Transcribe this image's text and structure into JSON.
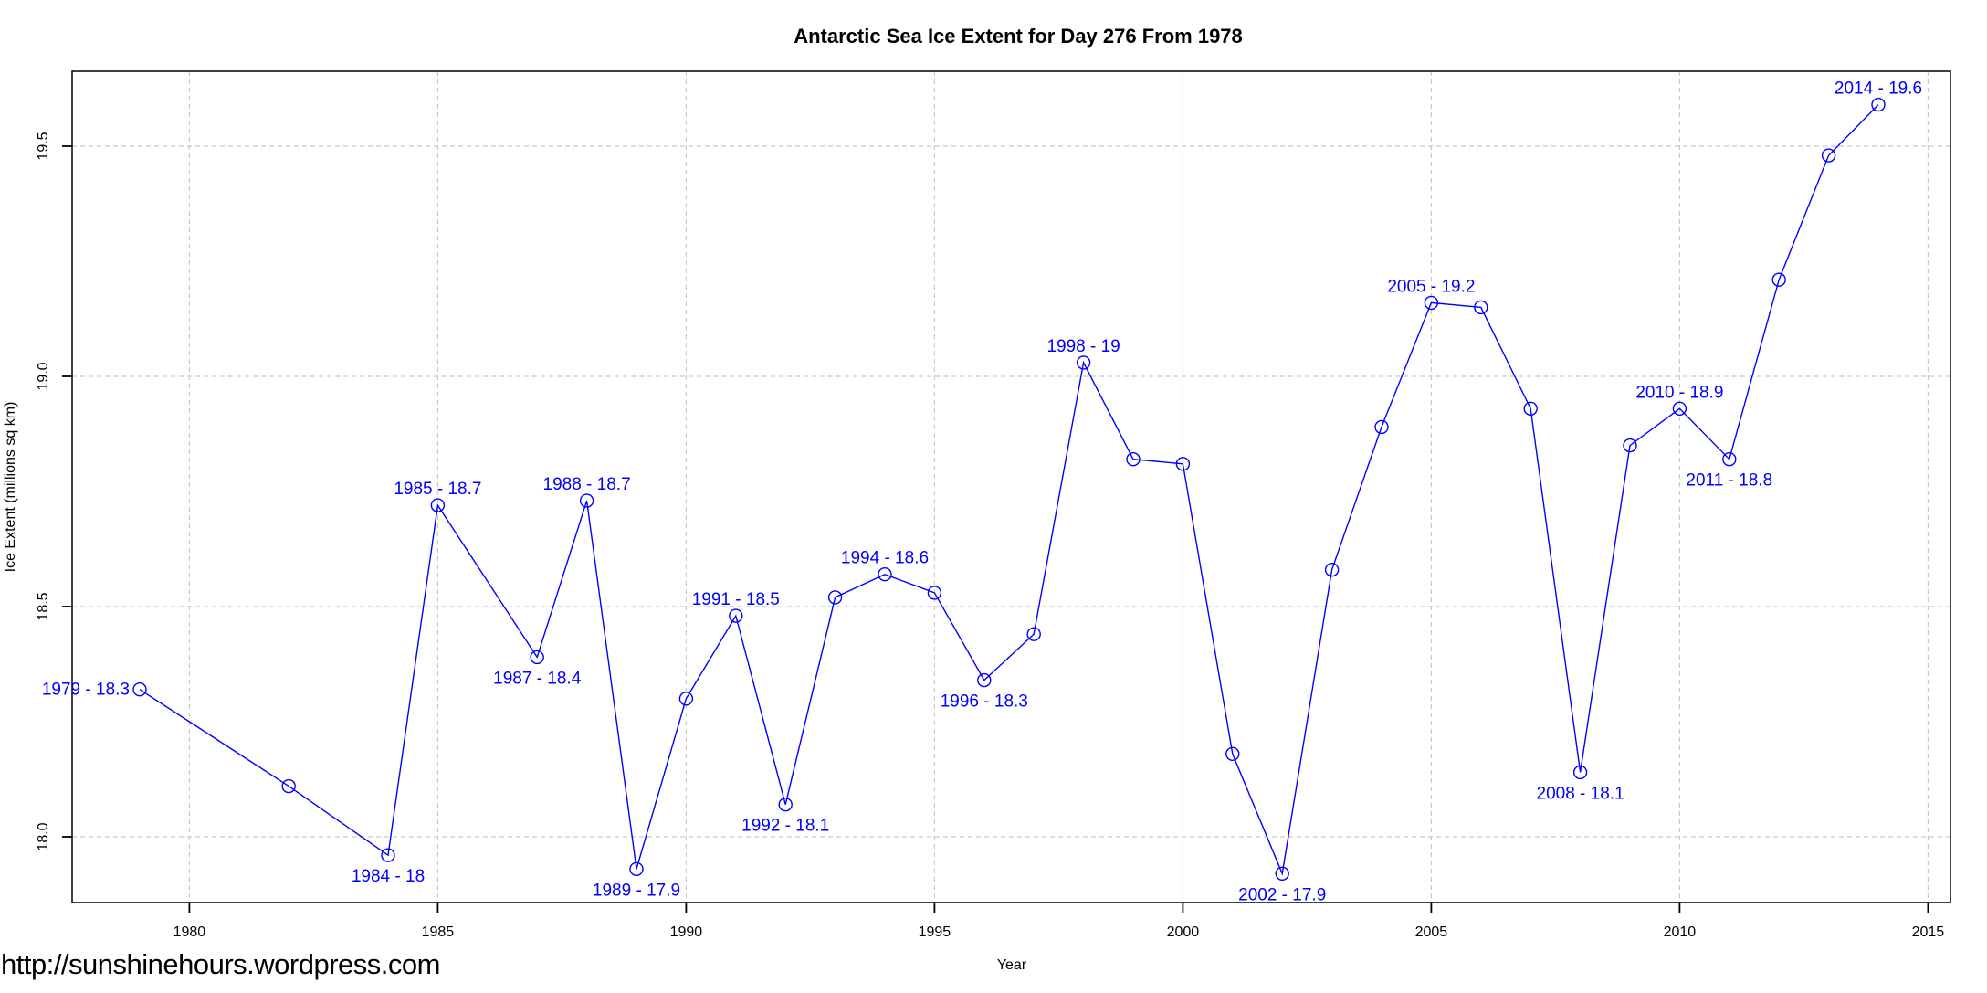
{
  "chart_data": {
    "type": "line",
    "title": "Antarctic Sea Ice Extent for Day 276 From 1978",
    "xlabel": "Year",
    "ylabel": "Ice Extent (millions sq km)",
    "x_ticks": [
      1980,
      1985,
      1990,
      1995,
      2000,
      2005,
      2010,
      2015
    ],
    "y_ticks": [
      "18.0",
      "18.5",
      "19.0",
      "19.5"
    ],
    "xlim": [
      1977.6,
      2015.5
    ],
    "ylim": [
      17.86,
      19.66
    ],
    "grid": "dashed",
    "legend": "none",
    "series": [
      {
        "name": "ice-extent",
        "color": "#0000FF",
        "marker": "open-circle",
        "points": [
          {
            "year": 1979,
            "value": 18.32
          },
          {
            "year": 1982,
            "value": 18.11
          },
          {
            "year": 1984,
            "value": 17.96
          },
          {
            "year": 1985,
            "value": 18.72
          },
          {
            "year": 1987,
            "value": 18.39
          },
          {
            "year": 1988,
            "value": 18.73
          },
          {
            "year": 1989,
            "value": 17.93
          },
          {
            "year": 1990,
            "value": 18.3
          },
          {
            "year": 1991,
            "value": 18.48
          },
          {
            "year": 1992,
            "value": 18.07
          },
          {
            "year": 1993,
            "value": 18.52
          },
          {
            "year": 1994,
            "value": 18.57
          },
          {
            "year": 1995,
            "value": 18.53
          },
          {
            "year": 1996,
            "value": 18.34
          },
          {
            "year": 1997,
            "value": 18.44
          },
          {
            "year": 1998,
            "value": 19.03
          },
          {
            "year": 1999,
            "value": 18.82
          },
          {
            "year": 2000,
            "value": 18.81
          },
          {
            "year": 2001,
            "value": 18.18
          },
          {
            "year": 2002,
            "value": 17.92
          },
          {
            "year": 2003,
            "value": 18.58
          },
          {
            "year": 2004,
            "value": 18.89
          },
          {
            "year": 2005,
            "value": 19.16
          },
          {
            "year": 2006,
            "value": 19.15
          },
          {
            "year": 2007,
            "value": 18.93
          },
          {
            "year": 2008,
            "value": 18.14
          },
          {
            "year": 2009,
            "value": 18.85
          },
          {
            "year": 2010,
            "value": 18.93
          },
          {
            "year": 2011,
            "value": 18.82
          },
          {
            "year": 2012,
            "value": 19.21
          },
          {
            "year": 2013,
            "value": 19.48
          },
          {
            "year": 2014,
            "value": 19.59
          }
        ]
      }
    ],
    "point_labels": [
      {
        "year": 1979,
        "text": "1979 - 18.3",
        "pos": "left"
      },
      {
        "year": 1984,
        "text": "1984 - 18",
        "pos": "below"
      },
      {
        "year": 1985,
        "text": "1985 - 18.7",
        "pos": "above"
      },
      {
        "year": 1987,
        "text": "1987 - 18.4",
        "pos": "below"
      },
      {
        "year": 1988,
        "text": "1988 - 18.7",
        "pos": "above"
      },
      {
        "year": 1989,
        "text": "1989 - 17.9",
        "pos": "below"
      },
      {
        "year": 1991,
        "text": "1991 - 18.5",
        "pos": "above"
      },
      {
        "year": 1992,
        "text": "1992 - 18.1",
        "pos": "below"
      },
      {
        "year": 1994,
        "text": "1994 - 18.6",
        "pos": "above"
      },
      {
        "year": 1996,
        "text": "1996 - 18.3",
        "pos": "below"
      },
      {
        "year": 1998,
        "text": "1998 - 19",
        "pos": "above"
      },
      {
        "year": 2002,
        "text": "2002 - 17.9",
        "pos": "below"
      },
      {
        "year": 2005,
        "text": "2005 - 19.2",
        "pos": "above"
      },
      {
        "year": 2008,
        "text": "2008 - 18.1",
        "pos": "below"
      },
      {
        "year": 2010,
        "text": "2010 - 18.9",
        "pos": "above"
      },
      {
        "year": 2011,
        "text": "2011 - 18.8",
        "pos": "below"
      },
      {
        "year": 2014,
        "text": "2014 - 19.6",
        "pos": "above"
      }
    ]
  },
  "watermark": {
    "text": "http://sunshinehours.wordpress.com"
  },
  "colors": {
    "line": "#0000FF",
    "point_label": "#0000FF",
    "grid": "#C9C9C9",
    "axis": "#000000",
    "background": "#FFFFFF"
  }
}
